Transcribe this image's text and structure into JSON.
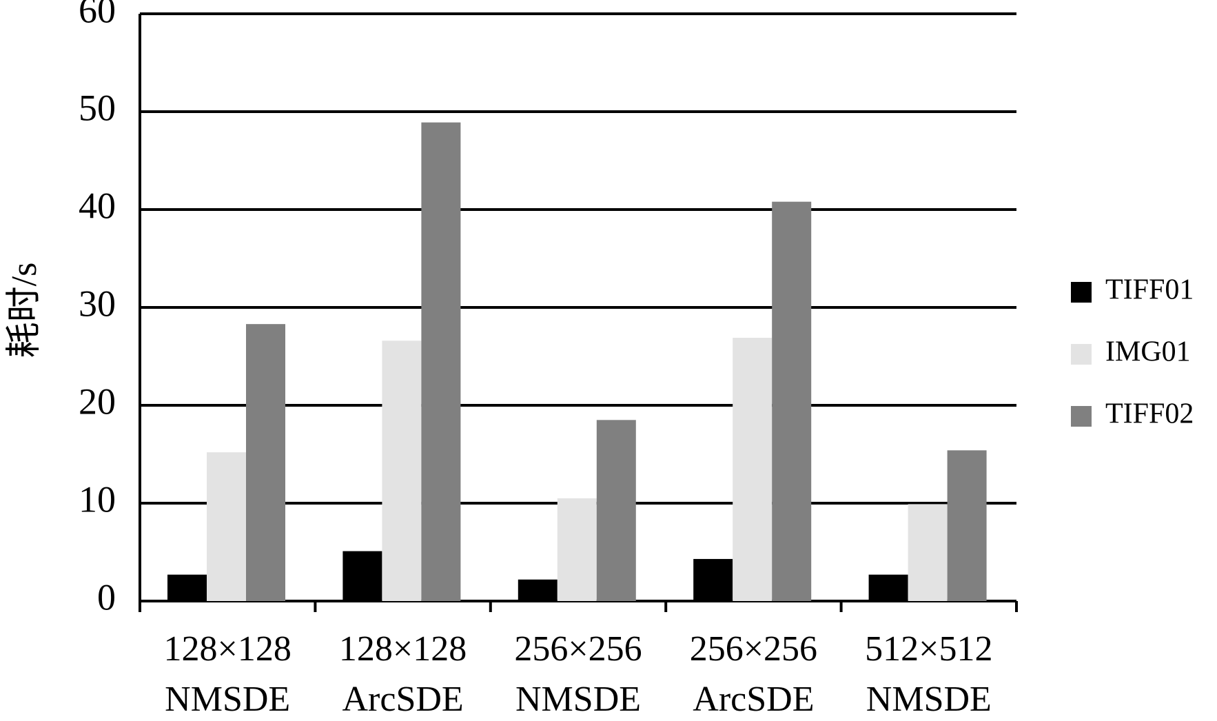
{
  "chart_data": {
    "type": "bar",
    "y_label": "耗时/s",
    "categories": [
      [
        "128×128",
        "NMSDE"
      ],
      [
        "128×128",
        "ArcSDE"
      ],
      [
        "256×256",
        "NMSDE"
      ],
      [
        "256×256",
        "ArcSDE"
      ],
      [
        "512×512",
        "NMSDE"
      ]
    ],
    "series": [
      {
        "name": "TIFF01",
        "color": "#000000",
        "values": [
          2.7,
          5.1,
          2.2,
          4.3,
          2.7
        ]
      },
      {
        "name": "IMG01",
        "color": "#e3e3e3",
        "values": [
          15.2,
          26.6,
          10.5,
          26.9,
          9.9
        ]
      },
      {
        "name": "TIFF02",
        "color": "#808080",
        "values": [
          28.3,
          48.9,
          18.5,
          40.8,
          15.4
        ]
      }
    ],
    "ylim": [
      0,
      60
    ],
    "yticks": [
      0,
      10,
      20,
      30,
      40,
      50,
      60
    ],
    "grid": true,
    "legend": "right"
  }
}
